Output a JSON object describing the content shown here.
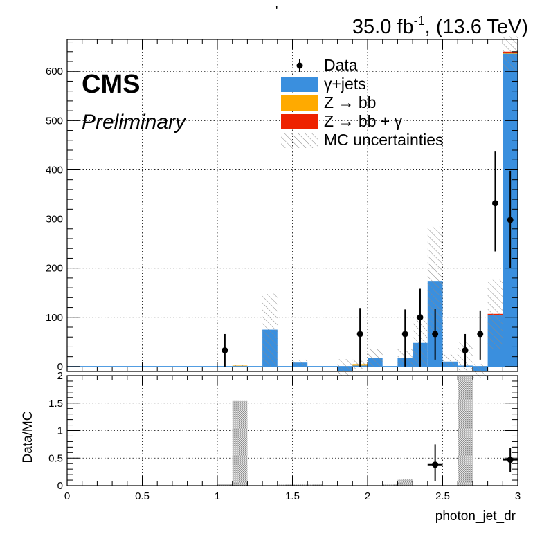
{
  "header": {
    "lumi_text": "35.0 fb",
    "lumi_sup": "-1",
    "energy_text": ", (13.6 TeV)",
    "stray_mark": "'",
    "cms_label": "CMS",
    "preliminary_label": "Preliminary"
  },
  "legend": {
    "entries": [
      {
        "label": "Data",
        "style": "marker"
      },
      {
        "label": "γ+jets",
        "style": "fill",
        "color": "#3a8fde"
      },
      {
        "label": "Z → bb",
        "style": "fill",
        "color": "#ffaa00"
      },
      {
        "label": "Z → bb + γ",
        "style": "fill",
        "color": "#ee2200"
      },
      {
        "label": "MC uncertainties",
        "style": "hatch"
      }
    ]
  },
  "chart_data": [
    {
      "type": "bar",
      "panel": "main",
      "stacked": true,
      "bin_edges": [
        0,
        0.1,
        0.2,
        0.3,
        0.4,
        0.5,
        0.6,
        0.7,
        0.8,
        0.9,
        1.0,
        1.1,
        1.2,
        1.3,
        1.4,
        1.5,
        1.6,
        1.7,
        1.8,
        1.9,
        2.0,
        2.1,
        2.2,
        2.3,
        2.4,
        2.5,
        2.6,
        2.7,
        2.8,
        2.9,
        3.0
      ],
      "series": [
        {
          "name": "γ+jets",
          "color": "#3a8fde",
          "values": [
            0,
            0,
            0,
            0,
            0,
            0,
            0,
            0,
            0,
            0,
            0,
            1,
            0,
            75,
            0,
            8,
            0,
            0,
            -9,
            2,
            18,
            0,
            18,
            48,
            174,
            10,
            2,
            -9,
            105,
            636
          ]
        },
        {
          "name": "Z → bb",
          "color": "#ffaa00",
          "values": [
            0,
            0,
            0,
            0,
            0,
            0,
            0,
            0,
            0,
            0,
            0,
            1,
            0,
            0,
            0,
            0,
            0,
            0,
            0,
            3,
            0,
            0,
            0,
            0,
            0,
            0,
            0,
            0,
            1,
            2
          ]
        },
        {
          "name": "Z → bb + γ",
          "color": "#ee2200",
          "values": [
            0,
            0,
            0,
            0,
            0,
            0,
            0,
            0,
            0,
            0,
            0,
            0,
            0,
            0,
            0,
            0,
            0,
            0,
            0,
            0,
            0,
            0,
            0,
            0,
            0,
            0,
            0,
            0,
            1,
            2
          ]
        }
      ],
      "mc_uncertainty": [
        {
          "bin": 11,
          "low": 0,
          "high": 4
        },
        {
          "bin": 13,
          "low": 0,
          "high": 148
        },
        {
          "bin": 15,
          "low": 0,
          "high": 14
        },
        {
          "bin": 18,
          "low": -18,
          "high": 15
        },
        {
          "bin": 19,
          "low": -5,
          "high": 14
        },
        {
          "bin": 20,
          "low": 0,
          "high": 35
        },
        {
          "bin": 22,
          "low": 0,
          "high": 35
        },
        {
          "bin": 23,
          "low": 0,
          "high": 95
        },
        {
          "bin": 24,
          "low": 65,
          "high": 284
        },
        {
          "bin": 25,
          "low": 0,
          "high": 25
        },
        {
          "bin": 26,
          "low": -10,
          "high": 50
        },
        {
          "bin": 27,
          "low": -22,
          "high": 5
        },
        {
          "bin": 28,
          "low": 35,
          "high": 176
        },
        {
          "bin": 29,
          "low": 600,
          "high": 672
        }
      ],
      "data_points": [
        {
          "x": 1.05,
          "y": 33,
          "yerr_low": 33,
          "yerr_high": 33
        },
        {
          "x": 1.95,
          "y": 66,
          "yerr_low": 66,
          "yerr_high": 53
        },
        {
          "x": 2.25,
          "y": 66,
          "yerr_low": 66,
          "yerr_high": 50
        },
        {
          "x": 2.35,
          "y": 100,
          "yerr_low": 100,
          "yerr_high": 58
        },
        {
          "x": 2.45,
          "y": 66,
          "yerr_low": 52,
          "yerr_high": 52
        },
        {
          "x": 2.65,
          "y": 33,
          "yerr_low": 33,
          "yerr_high": 33
        },
        {
          "x": 2.75,
          "y": 66,
          "yerr_low": 52,
          "yerr_high": 48
        },
        {
          "x": 2.85,
          "y": 332,
          "yerr_low": 98,
          "yerr_high": 105
        },
        {
          "x": 2.95,
          "y": 298,
          "yerr_low": 98,
          "yerr_high": 100
        }
      ],
      "xlim": [
        0,
        3
      ],
      "ylim": [
        -10,
        665
      ],
      "y_ticks": [
        0,
        100,
        200,
        300,
        400,
        500,
        600
      ],
      "grid": true
    },
    {
      "type": "scatter",
      "panel": "ratio",
      "ylabel": "Data/MC",
      "xlabel": "photon_jet_dr",
      "xlim": [
        0,
        3
      ],
      "ylim": [
        0,
        2
      ],
      "y_ticks": [
        0,
        0.5,
        1,
        1.5,
        2
      ],
      "x_ticks": [
        0,
        0.5,
        1,
        1.5,
        2,
        2.5,
        3
      ],
      "uncertainty_bands": [
        {
          "bin": 10,
          "low": 0,
          "high": 0.03
        },
        {
          "bin": 11,
          "low": 0,
          "high": 1.55
        },
        {
          "bin": 14,
          "low": 0,
          "high": 0.02
        },
        {
          "bin": 15,
          "low": 0,
          "high": 0.02
        },
        {
          "bin": 16,
          "low": 0,
          "high": 0.02
        },
        {
          "bin": 21,
          "low": 0,
          "high": 0.02
        },
        {
          "bin": 22,
          "low": 0,
          "high": 0.11
        },
        {
          "bin": 26,
          "low": 0,
          "high": 2
        }
      ],
      "points": [
        {
          "x": 2.45,
          "y": 0.38,
          "yerr_low": 0.3,
          "yerr_high": 0.37,
          "xerr": 0.05
        },
        {
          "x": 2.95,
          "y": 0.47,
          "yerr_low": 0.22,
          "yerr_high": 0.22,
          "xerr": 0.05
        }
      ]
    }
  ]
}
